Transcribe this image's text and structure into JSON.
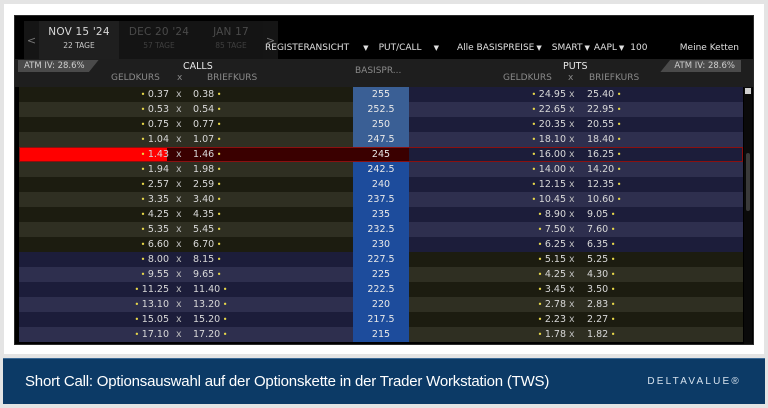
{
  "tabs": {
    "prev_icon": "chevron-left",
    "next_icon": "chevron-right",
    "items": [
      {
        "date": "NOV 15 '24",
        "days": "22 TAGE",
        "active": true
      },
      {
        "date": "DEC 20 '24",
        "days": "57 TAGE",
        "active": false
      },
      {
        "date": "JAN 17",
        "days": "85 TAGE",
        "active": false
      }
    ]
  },
  "toolbar": {
    "view": "REGISTERANSICHT",
    "putcall": "PUT/CALL",
    "strikes": "Alle BASISPREISE",
    "exchange": "SMART",
    "symbol": "AAPL",
    "quantity": "100",
    "chains": "Meine Ketten"
  },
  "header": {
    "atm_left": "ATM IV: 28.6%",
    "atm_right": "ATM IV: 28.6%",
    "calls": "CALLS",
    "puts": "PUTS",
    "strike": "BASISPR...",
    "bid": "GELDKURS",
    "x": "x",
    "ask": "BRIEFKURS"
  },
  "colors": {
    "itm_call_a": "#1c1c10",
    "itm_call_b": "#2f2f22",
    "otm_a": "#1c1d3a",
    "otm_b": "#2e2f4e",
    "strike_itm_call": "#3a5f95",
    "strike_otm_call": "#1d4c9c",
    "highlight": "#ff0000",
    "highlight_dark": "#3a0000",
    "dot": "#e8d84a",
    "footer_bg": "#0c3a66"
  },
  "rows": [
    {
      "strike": "255",
      "call_bid": "0.37",
      "call_ask": "0.38",
      "put_bid": "24.95",
      "put_ask": "25.40"
    },
    {
      "strike": "252.5",
      "call_bid": "0.53",
      "call_ask": "0.54",
      "put_bid": "22.65",
      "put_ask": "22.95"
    },
    {
      "strike": "250",
      "call_bid": "0.75",
      "call_ask": "0.77",
      "put_bid": "20.35",
      "put_ask": "20.55"
    },
    {
      "strike": "247.5",
      "call_bid": "1.04",
      "call_ask": "1.07",
      "put_bid": "18.10",
      "put_ask": "18.40"
    },
    {
      "strike": "245",
      "call_bid": "1.43",
      "call_ask": "1.46",
      "put_bid": "16.00",
      "put_ask": "16.25",
      "selected": true
    },
    {
      "strike": "242.5",
      "call_bid": "1.94",
      "call_ask": "1.98",
      "put_bid": "14.00",
      "put_ask": "14.20"
    },
    {
      "strike": "240",
      "call_bid": "2.57",
      "call_ask": "2.59",
      "put_bid": "12.15",
      "put_ask": "12.35"
    },
    {
      "strike": "237.5",
      "call_bid": "3.35",
      "call_ask": "3.40",
      "put_bid": "10.45",
      "put_ask": "10.60"
    },
    {
      "strike": "235",
      "call_bid": "4.25",
      "call_ask": "4.35",
      "put_bid": "8.90",
      "put_ask": "9.05"
    },
    {
      "strike": "232.5",
      "call_bid": "5.35",
      "call_ask": "5.45",
      "put_bid": "7.50",
      "put_ask": "7.60"
    },
    {
      "strike": "230",
      "call_bid": "6.60",
      "call_ask": "6.70",
      "put_bid": "6.25",
      "put_ask": "6.35"
    },
    {
      "strike": "227.5",
      "call_bid": "8.00",
      "call_ask": "8.15",
      "put_bid": "5.15",
      "put_ask": "5.25"
    },
    {
      "strike": "225",
      "call_bid": "9.55",
      "call_ask": "9.65",
      "put_bid": "4.25",
      "put_ask": "4.30"
    },
    {
      "strike": "222.5",
      "call_bid": "11.25",
      "call_ask": "11.40",
      "put_bid": "3.45",
      "put_ask": "3.50"
    },
    {
      "strike": "220",
      "call_bid": "13.10",
      "call_ask": "13.20",
      "put_bid": "2.78",
      "put_ask": "2.83"
    },
    {
      "strike": "217.5",
      "call_bid": "15.05",
      "call_ask": "15.20",
      "put_bid": "2.23",
      "put_ask": "2.27"
    },
    {
      "strike": "215",
      "call_bid": "17.10",
      "call_ask": "17.20",
      "put_bid": "1.78",
      "put_ask": "1.82"
    }
  ],
  "footer": {
    "caption": "Short Call: Optionsauswahl auf der Optionskette in der Trader Workstation (TWS)",
    "brand": "DELTAVALUE®"
  }
}
